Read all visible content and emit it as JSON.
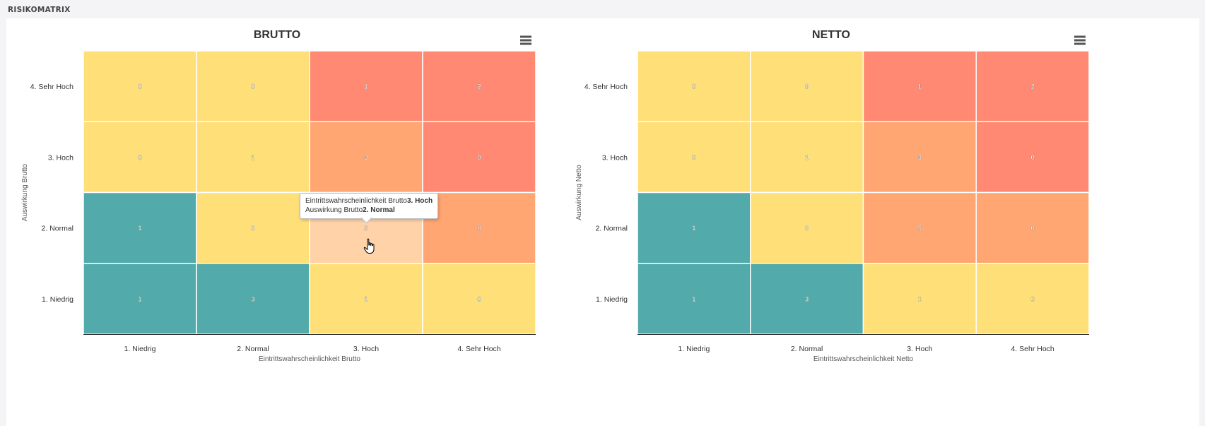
{
  "page": {
    "title": "RISIKOMATRIX"
  },
  "chart_data": [
    {
      "type": "heatmap",
      "title": "BRUTTO",
      "xlabel": "Eintrittswahrscheinlichkeit Brutto",
      "ylabel": "Auswirkung Brutto",
      "x_categories": [
        "1. Niedrig",
        "2. Normal",
        "3. Hoch",
        "4. Sehr Hoch"
      ],
      "y_categories": [
        "1. Niedrig",
        "2. Normal",
        "3. Hoch",
        "4. Sehr Hoch"
      ],
      "cells": [
        {
          "x": 0,
          "y": 3,
          "value": 0,
          "color": "#ffdf78"
        },
        {
          "x": 1,
          "y": 3,
          "value": 0,
          "color": "#ffdf78"
        },
        {
          "x": 2,
          "y": 3,
          "value": 1,
          "color": "#ff8972"
        },
        {
          "x": 3,
          "y": 3,
          "value": 2,
          "color": "#ff8972"
        },
        {
          "x": 0,
          "y": 2,
          "value": 0,
          "color": "#ffdf78"
        },
        {
          "x": 1,
          "y": 2,
          "value": 1,
          "color": "#ffdf78"
        },
        {
          "x": 2,
          "y": 2,
          "value": 3,
          "color": "#ffa672"
        },
        {
          "x": 3,
          "y": 2,
          "value": 0,
          "color": "#ff8972"
        },
        {
          "x": 0,
          "y": 1,
          "value": 1,
          "color": "#52aaaa"
        },
        {
          "x": 1,
          "y": 1,
          "value": 8,
          "color": "#ffdf78"
        },
        {
          "x": 2,
          "y": 1,
          "value": 5,
          "color": "#ffd2a8"
        },
        {
          "x": 3,
          "y": 1,
          "value": 0,
          "color": "#ffa672"
        },
        {
          "x": 0,
          "y": 0,
          "value": 1,
          "color": "#52aaaa"
        },
        {
          "x": 1,
          "y": 0,
          "value": 3,
          "color": "#52aaaa"
        },
        {
          "x": 2,
          "y": 0,
          "value": 1,
          "color": "#ffdf78"
        },
        {
          "x": 3,
          "y": 0,
          "value": 0,
          "color": "#ffdf78"
        }
      ],
      "tooltip": {
        "line1_label": "Eintrittswahrscheinlichkeit Brutto",
        "line1_value": "3. Hoch",
        "line2_label": "Auswirkung Brutto",
        "line2_value": "2. Normal"
      },
      "menu_icon": "hamburger-menu-icon",
      "cursor_icon": "hand-pointer-icon"
    },
    {
      "type": "heatmap",
      "title": "NETTO",
      "xlabel": "Eintrittswahrscheinlichkeit Netto",
      "ylabel": "Auswirkung Netto",
      "x_categories": [
        "1. Niedrig",
        "2. Normal",
        "3. Hoch",
        "4. Sehr Hoch"
      ],
      "y_categories": [
        "1. Niedrig",
        "2. Normal",
        "3. Hoch",
        "4. Sehr Hoch"
      ],
      "cells": [
        {
          "x": 0,
          "y": 3,
          "value": 0,
          "color": "#ffdf78"
        },
        {
          "x": 1,
          "y": 3,
          "value": 0,
          "color": "#ffdf78"
        },
        {
          "x": 2,
          "y": 3,
          "value": 1,
          "color": "#ff8972"
        },
        {
          "x": 3,
          "y": 3,
          "value": 2,
          "color": "#ff8972"
        },
        {
          "x": 0,
          "y": 2,
          "value": 0,
          "color": "#ffdf78"
        },
        {
          "x": 1,
          "y": 2,
          "value": 1,
          "color": "#ffdf78"
        },
        {
          "x": 2,
          "y": 2,
          "value": 3,
          "color": "#ffa672"
        },
        {
          "x": 3,
          "y": 2,
          "value": 0,
          "color": "#ff8972"
        },
        {
          "x": 0,
          "y": 1,
          "value": 1,
          "color": "#52aaaa"
        },
        {
          "x": 1,
          "y": 1,
          "value": 8,
          "color": "#ffdf78"
        },
        {
          "x": 2,
          "y": 1,
          "value": 5,
          "color": "#ffa672"
        },
        {
          "x": 3,
          "y": 1,
          "value": 0,
          "color": "#ffa672"
        },
        {
          "x": 0,
          "y": 0,
          "value": 1,
          "color": "#52aaaa"
        },
        {
          "x": 1,
          "y": 0,
          "value": 3,
          "color": "#52aaaa"
        },
        {
          "x": 2,
          "y": 0,
          "value": 1,
          "color": "#ffdf78"
        },
        {
          "x": 3,
          "y": 0,
          "value": 0,
          "color": "#ffdf78"
        }
      ],
      "menu_icon": "hamburger-menu-icon"
    }
  ]
}
